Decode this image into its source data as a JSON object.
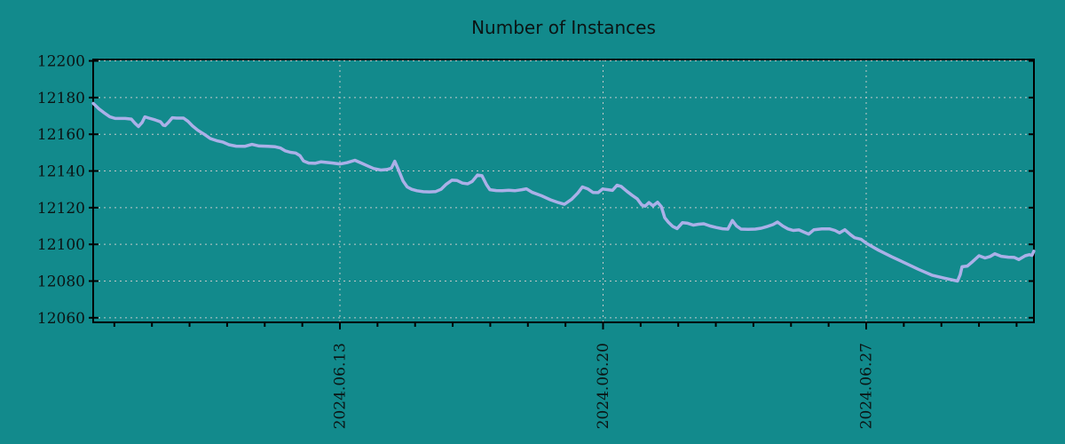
{
  "colors": {
    "background": "#128a8c",
    "series_line": "#abb0e8",
    "grid": "#c3c9c9",
    "axis": "#000000",
    "text": "#0b1414"
  },
  "chart_data": {
    "type": "line",
    "title": "Number of Instances",
    "xlabel": "",
    "ylabel": "",
    "legend": "none",
    "grid": "dotted",
    "x_axis": {
      "unit": "date",
      "major_ticks": [
        {
          "label": "2024.06.13",
          "t": 0
        },
        {
          "label": "2024.06.20",
          "t": 7
        },
        {
          "label": "2024.06.27",
          "t": 14
        }
      ],
      "minor_tick_interval_days": 1,
      "range_days_rel_first_tick": [
        -6.563,
        18.462
      ]
    },
    "y_axis": {
      "tick_values": [
        12060,
        12080,
        12100,
        12120,
        12140,
        12160,
        12180,
        12200
      ],
      "range": [
        12057.5,
        12200.75
      ]
    },
    "series": [
      {
        "name": "instances",
        "color": "#abb0e8",
        "points": [
          [
            -6.56,
            12176.8
          ],
          [
            -6.42,
            12174.0
          ],
          [
            -6.28,
            12171.8
          ],
          [
            -6.12,
            12169.5
          ],
          [
            -5.97,
            12168.6
          ],
          [
            -5.71,
            12168.6
          ],
          [
            -5.55,
            12168.3
          ],
          [
            -5.45,
            12166.0
          ],
          [
            -5.36,
            12164.2
          ],
          [
            -5.26,
            12166.5
          ],
          [
            -5.19,
            12169.5
          ],
          [
            -5.08,
            12168.8
          ],
          [
            -4.91,
            12167.8
          ],
          [
            -4.77,
            12166.8
          ],
          [
            -4.7,
            12165.0
          ],
          [
            -4.65,
            12164.7
          ],
          [
            -4.56,
            12166.5
          ],
          [
            -4.46,
            12169.0
          ],
          [
            -4.34,
            12168.8
          ],
          [
            -4.16,
            12168.8
          ],
          [
            -4.04,
            12167.0
          ],
          [
            -3.92,
            12164.5
          ],
          [
            -3.78,
            12162.2
          ],
          [
            -3.61,
            12160.0
          ],
          [
            -3.45,
            12157.7
          ],
          [
            -3.28,
            12156.5
          ],
          [
            -3.12,
            12155.8
          ],
          [
            -2.95,
            12154.3
          ],
          [
            -2.76,
            12153.5
          ],
          [
            -2.53,
            12153.4
          ],
          [
            -2.34,
            12154.5
          ],
          [
            -2.15,
            12153.6
          ],
          [
            -1.91,
            12153.4
          ],
          [
            -1.72,
            12153.2
          ],
          [
            -1.58,
            12152.5
          ],
          [
            -1.46,
            12151.0
          ],
          [
            -1.32,
            12150.2
          ],
          [
            -1.18,
            12149.8
          ],
          [
            -1.06,
            12148.3
          ],
          [
            -0.97,
            12145.5
          ],
          [
            -0.83,
            12144.3
          ],
          [
            -0.66,
            12144.2
          ],
          [
            -0.5,
            12145.0
          ],
          [
            -0.33,
            12144.6
          ],
          [
            -0.19,
            12144.3
          ],
          [
            0.0,
            12143.8
          ],
          [
            0.19,
            12144.5
          ],
          [
            0.4,
            12145.8
          ],
          [
            0.57,
            12144.3
          ],
          [
            0.73,
            12142.8
          ],
          [
            0.9,
            12141.3
          ],
          [
            1.09,
            12140.5
          ],
          [
            1.25,
            12140.8
          ],
          [
            1.37,
            12141.5
          ],
          [
            1.46,
            12145.3
          ],
          [
            1.56,
            12140.5
          ],
          [
            1.68,
            12134.5
          ],
          [
            1.79,
            12131.3
          ],
          [
            1.91,
            12130.0
          ],
          [
            2.05,
            12129.2
          ],
          [
            2.22,
            12128.7
          ],
          [
            2.38,
            12128.6
          ],
          [
            2.55,
            12128.8
          ],
          [
            2.69,
            12130.0
          ],
          [
            2.83,
            12132.8
          ],
          [
            2.98,
            12135.0
          ],
          [
            3.12,
            12134.8
          ],
          [
            3.26,
            12133.4
          ],
          [
            3.4,
            12133.0
          ],
          [
            3.52,
            12134.3
          ],
          [
            3.66,
            12137.8
          ],
          [
            3.78,
            12137.4
          ],
          [
            3.9,
            12132.5
          ],
          [
            3.99,
            12129.8
          ],
          [
            4.16,
            12129.3
          ],
          [
            4.32,
            12129.2
          ],
          [
            4.49,
            12129.5
          ],
          [
            4.65,
            12129.2
          ],
          [
            4.84,
            12129.8
          ],
          [
            4.96,
            12130.3
          ],
          [
            5.12,
            12128.3
          ],
          [
            5.36,
            12126.5
          ],
          [
            5.6,
            12124.3
          ],
          [
            5.81,
            12122.8
          ],
          [
            5.97,
            12121.8
          ],
          [
            6.16,
            12124.5
          ],
          [
            6.33,
            12128.0
          ],
          [
            6.45,
            12131.3
          ],
          [
            6.59,
            12130.3
          ],
          [
            6.73,
            12128.3
          ],
          [
            6.87,
            12128.2
          ],
          [
            6.99,
            12130.2
          ],
          [
            7.13,
            12129.8
          ],
          [
            7.25,
            12129.4
          ],
          [
            7.37,
            12132.2
          ],
          [
            7.48,
            12131.6
          ],
          [
            7.63,
            12129.0
          ],
          [
            7.77,
            12126.8
          ],
          [
            7.91,
            12124.8
          ],
          [
            8.03,
            12121.5
          ],
          [
            8.12,
            12120.8
          ],
          [
            8.22,
            12122.8
          ],
          [
            8.33,
            12121.0
          ],
          [
            8.45,
            12123.0
          ],
          [
            8.55,
            12120.5
          ],
          [
            8.64,
            12114.5
          ],
          [
            8.74,
            12112.0
          ],
          [
            8.85,
            12109.8
          ],
          [
            8.97,
            12108.6
          ],
          [
            9.11,
            12111.8
          ],
          [
            9.25,
            12111.5
          ],
          [
            9.4,
            12110.5
          ],
          [
            9.54,
            12111.0
          ],
          [
            9.68,
            12111.2
          ],
          [
            9.85,
            12110.0
          ],
          [
            10.01,
            12109.2
          ],
          [
            10.18,
            12108.5
          ],
          [
            10.32,
            12108.3
          ],
          [
            10.44,
            12113.0
          ],
          [
            10.55,
            12110.0
          ],
          [
            10.67,
            12108.3
          ],
          [
            10.86,
            12108.2
          ],
          [
            11.05,
            12108.3
          ],
          [
            11.21,
            12108.8
          ],
          [
            11.38,
            12109.8
          ],
          [
            11.52,
            12110.8
          ],
          [
            11.64,
            12112.2
          ],
          [
            11.78,
            12110.0
          ],
          [
            11.92,
            12108.4
          ],
          [
            12.06,
            12107.6
          ],
          [
            12.21,
            12107.9
          ],
          [
            12.35,
            12106.6
          ],
          [
            12.47,
            12105.6
          ],
          [
            12.61,
            12108.0
          ],
          [
            12.82,
            12108.4
          ],
          [
            13.03,
            12108.4
          ],
          [
            13.17,
            12107.6
          ],
          [
            13.29,
            12106.3
          ],
          [
            13.43,
            12108.0
          ],
          [
            13.58,
            12105.3
          ],
          [
            13.69,
            12103.6
          ],
          [
            13.86,
            12102.8
          ],
          [
            14.0,
            12100.6
          ],
          [
            14.33,
            12096.8
          ],
          [
            14.68,
            12093.2
          ],
          [
            15.04,
            12089.8
          ],
          [
            15.39,
            12086.4
          ],
          [
            15.75,
            12083.2
          ],
          [
            16.1,
            12081.5
          ],
          [
            16.43,
            12080.0
          ],
          [
            16.5,
            12083.5
          ],
          [
            16.55,
            12087.8
          ],
          [
            16.69,
            12088.2
          ],
          [
            16.83,
            12090.6
          ],
          [
            17.0,
            12093.8
          ],
          [
            17.16,
            12092.6
          ],
          [
            17.3,
            12093.4
          ],
          [
            17.42,
            12094.9
          ],
          [
            17.59,
            12093.5
          ],
          [
            17.78,
            12093.0
          ],
          [
            17.94,
            12092.9
          ],
          [
            18.06,
            12091.7
          ],
          [
            18.23,
            12093.8
          ],
          [
            18.34,
            12094.4
          ],
          [
            18.41,
            12094.0
          ],
          [
            18.46,
            12096.3
          ]
        ]
      }
    ]
  }
}
